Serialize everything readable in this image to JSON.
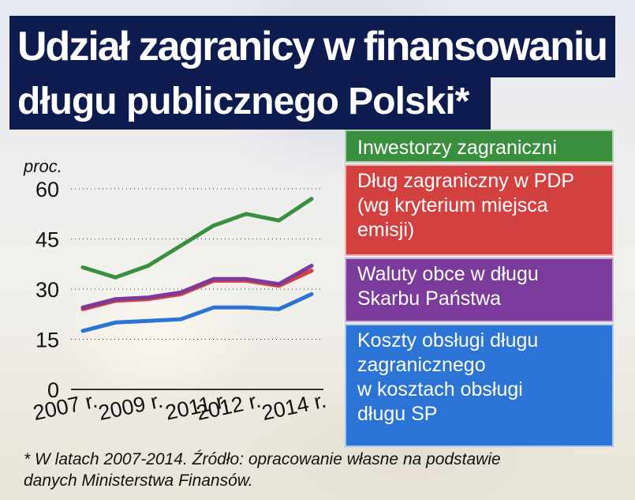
{
  "header": {
    "title_line1": "Udział zagranicy w finansowaniu",
    "title_line2": "długu publicznego Polski*"
  },
  "chart_data": {
    "type": "line",
    "ylabel": "proc.",
    "ylim": [
      0,
      60
    ],
    "yticks": [
      "0",
      "15",
      "30",
      "45",
      "60"
    ],
    "x": [
      "2007",
      "2008",
      "2009",
      "2010",
      "2011",
      "2012",
      "2013",
      "2014"
    ],
    "xtick_labels": [
      "2007 r.",
      "2009 r.",
      "2011 r.",
      "2012 r.",
      "2014 r."
    ],
    "grid": "horizontal dotted",
    "series": [
      {
        "name": "Inwestorzy zagraniczni",
        "color": "#3a8f3e",
        "values": [
          36.5,
          33.5,
          37,
          43,
          49,
          52.5,
          50.5,
          57
        ]
      },
      {
        "name": "Dług zagraniczny w PDP (wg kryterium miejsca emisji)",
        "color": "#d2403f",
        "values": [
          24,
          26.5,
          27,
          28.5,
          32.5,
          32.5,
          31,
          35.5
        ]
      },
      {
        "name": "Waluty obce w długu Skarbu Państwa",
        "color": "#7a3b9a",
        "values": [
          24.5,
          27,
          27.5,
          29,
          33,
          33,
          31.5,
          37
        ]
      },
      {
        "name": "Koszty obsługi długu zagranicznego w kosztach obsługi długu SP",
        "color": "#2c73d6",
        "values": [
          17.5,
          20,
          20.5,
          21,
          24.5,
          24.5,
          24,
          28.5
        ]
      }
    ]
  },
  "legend": [
    {
      "lines": [
        "Inwestorzy zagraniczni"
      ]
    },
    {
      "lines": [
        "Dług zagraniczny w PDP",
        "(wg kryterium miejsca",
        "emisji)"
      ]
    },
    {
      "lines": [
        "Waluty obce w długu",
        "Skarbu Państwa"
      ]
    },
    {
      "lines": [
        "Koszty obsługi długu",
        "zagranicznego",
        "w kosztach obsługi",
        "długu SP"
      ]
    }
  ],
  "footnote": {
    "line1": "* W latach 2007-2014. Źródło: opracowanie własne na podstawie",
    "line2": "danych Ministerstwa Finansów."
  }
}
